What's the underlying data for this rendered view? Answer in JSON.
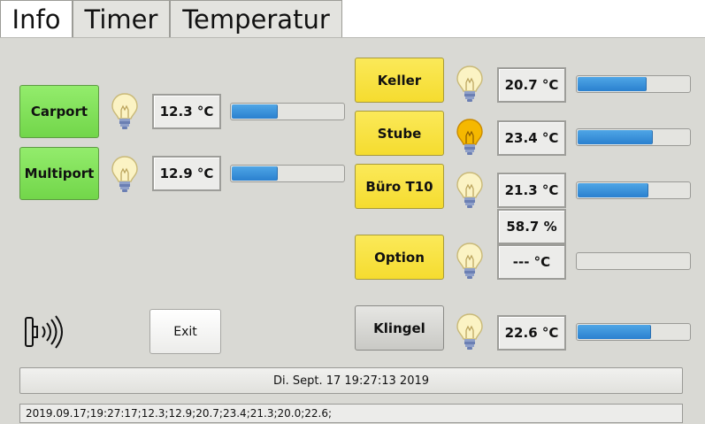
{
  "tabs": [
    {
      "label": "Info",
      "active": true
    },
    {
      "label": "Timer",
      "active": false
    },
    {
      "label": "Temperatur",
      "active": false
    }
  ],
  "left_rows": [
    {
      "button": "Carport",
      "color": "green",
      "bulb_on": false,
      "value": "12.3 °C",
      "level": 0.4
    },
    {
      "button": "Multiport",
      "color": "green",
      "bulb_on": false,
      "value": "12.9 °C",
      "level": 0.4
    }
  ],
  "right_rows": [
    {
      "button": "Keller",
      "color": "yellow",
      "bulb_on": false,
      "value": "20.7 °C",
      "level": 0.6
    },
    {
      "button": "Stube",
      "color": "yellow",
      "bulb_on": true,
      "value": "23.4 °C",
      "level": 0.66
    },
    {
      "button": "Büro T10",
      "color": "yellow",
      "bulb_on": false,
      "value": "21.3 °C",
      "level": 0.62
    },
    {
      "button": "Option",
      "color": "yellow",
      "bulb_on": false,
      "value": "--- °C",
      "level": 0.0
    },
    {
      "button": "Klingel",
      "color": "gray",
      "bulb_on": false,
      "value": "22.6 °C",
      "level": 0.64
    }
  ],
  "humidity": "58.7 %",
  "exit_label": "Exit",
  "icons": {
    "bulb": "lightbulb-icon",
    "nfc": "nfc-reader-icon"
  },
  "colors": {
    "green": "#7ddc55",
    "yellow": "#f7e140",
    "gray": "#d2d2ce",
    "bar": "#3b8fd8",
    "bulb_on": "#f5b800"
  },
  "datetime": "Di. Sept. 17 19:27:13 2019",
  "log_line": "2019.09.17;19:27:17;12.3;12.9;20.7;23.4;21.3;20.0;22.6;"
}
